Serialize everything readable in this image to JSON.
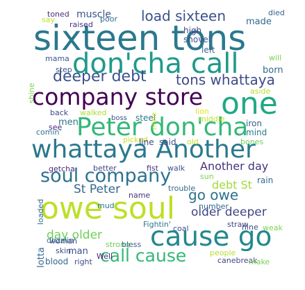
{
  "word_cloud": {
    "words": [
      {
        "text": "sixteen tons",
        "color": "#2a788e"
      },
      {
        "text": "don'cha call",
        "color": "#1f9a8a"
      },
      {
        "text": "company store",
        "color": "#440154"
      },
      {
        "text": "one",
        "color": "#22a884"
      },
      {
        "text": "Peter don'cha",
        "color": "#35b779"
      },
      {
        "text": "whattaya Another",
        "color": "#2a788e"
      },
      {
        "text": "soul company",
        "color": "#2c728e"
      },
      {
        "text": "owe soul",
        "color": "#bddf26"
      },
      {
        "text": "cause go",
        "color": "#23888e"
      },
      {
        "text": "deeper debt",
        "color": "#3b528b"
      },
      {
        "text": "tons whattaya",
        "color": "#3e4a89"
      },
      {
        "text": "load sixteen",
        "color": "#3b528b"
      },
      {
        "text": "Another day",
        "color": "#46327e"
      },
      {
        "text": "debt St",
        "color": "#a0da39"
      },
      {
        "text": "St Peter",
        "color": "#31688e"
      },
      {
        "text": "go owe",
        "color": "#2c728e"
      },
      {
        "text": "older deeper",
        "color": "#414487"
      },
      {
        "text": "day older",
        "color": "#6ece58"
      },
      {
        "text": "call cause",
        "color": "#35b779"
      },
      {
        "text": "muscle",
        "color": "#3b528b"
      },
      {
        "text": "made",
        "color": "#31688e"
      },
      {
        "text": "high",
        "color": "#414487"
      },
      {
        "text": "shovel",
        "color": "#3b528b"
      },
      {
        "text": "left",
        "color": "#31688e"
      },
      {
        "text": "toned",
        "color": "#472d7b"
      },
      {
        "text": "poor",
        "color": "#31688e"
      },
      {
        "text": "say",
        "color": "#c2df23"
      },
      {
        "text": "raised",
        "color": "#46327e"
      },
      {
        "text": "died",
        "color": "#355f8d"
      },
      {
        "text": "mama",
        "color": "#38598c"
      },
      {
        "text": "step",
        "color": "#3b528b"
      },
      {
        "text": "will",
        "color": "#7ad151"
      },
      {
        "text": "born",
        "color": "#31688e"
      },
      {
        "text": "shine",
        "color": "#7ad151"
      },
      {
        "text": "aside",
        "color": "#b5de2b"
      },
      {
        "text": "men",
        "color": "#2a788e"
      },
      {
        "text": "back",
        "color": "#3e4a89"
      },
      {
        "text": "walked",
        "color": "#addc30"
      },
      {
        "text": "see",
        "color": "#482878"
      },
      {
        "text": "comin'",
        "color": "#2c728e"
      },
      {
        "text": "boss",
        "color": "#3b528b"
      },
      {
        "text": "steel",
        "color": "#2a788e"
      },
      {
        "text": "mine",
        "color": "#c8e020"
      },
      {
        "text": "lion",
        "color": "#e5e419"
      },
      {
        "text": "middle",
        "color": "#bddf26"
      },
      {
        "text": "iron",
        "color": "#355f8d"
      },
      {
        "text": "mind",
        "color": "#2a788e"
      },
      {
        "text": "picked",
        "color": "#c8e020"
      },
      {
        "text": "line",
        "color": "#3e4a89"
      },
      {
        "text": "said",
        "color": "#3b528b"
      },
      {
        "text": "old",
        "color": "#bddf26"
      },
      {
        "text": "bones",
        "color": "#6ece58"
      },
      {
        "text": "getcha",
        "color": "#482878"
      },
      {
        "text": "better",
        "color": "#414487"
      },
      {
        "text": "fist",
        "color": "#472d7b"
      },
      {
        "text": "walk",
        "color": "#3b528b"
      },
      {
        "text": "sun",
        "color": "#7ad151"
      },
      {
        "text": "rain",
        "color": "#31688e"
      },
      {
        "text": "loaded",
        "color": "#31688e"
      },
      {
        "text": "name",
        "color": "#46327e"
      },
      {
        "text": "trouble",
        "color": "#31688e"
      },
      {
        "text": "number",
        "color": "#31688e"
      },
      {
        "text": "mud",
        "color": "#2a788e"
      },
      {
        "text": "Fightin'",
        "color": "#2a788e"
      },
      {
        "text": "coal",
        "color": "#3e4a89"
      },
      {
        "text": "straw",
        "color": "#414487"
      },
      {
        "text": "nine",
        "color": "#3e4a89"
      },
      {
        "text": "weak",
        "color": "#7ad151"
      },
      {
        "text": "lotta",
        "color": "#31688e"
      },
      {
        "text": "drizzlin'",
        "color": "#2c728e"
      },
      {
        "text": "woman",
        "color": "#3e4a89"
      },
      {
        "text": "skin",
        "color": "#3e4a89"
      },
      {
        "text": "man",
        "color": "#3b528b"
      },
      {
        "text": "strong",
        "color": "#6ece58"
      },
      {
        "text": "bless",
        "color": "#355f8d"
      },
      {
        "text": "Well",
        "color": "#482878"
      },
      {
        "text": "people",
        "color": "#b5de2b"
      },
      {
        "text": "blood",
        "color": "#31688e"
      },
      {
        "text": "right",
        "color": "#3e4a89"
      },
      {
        "text": "canebreak",
        "color": "#414487"
      },
      {
        "text": "make",
        "color": "#7ad151"
      }
    ]
  }
}
